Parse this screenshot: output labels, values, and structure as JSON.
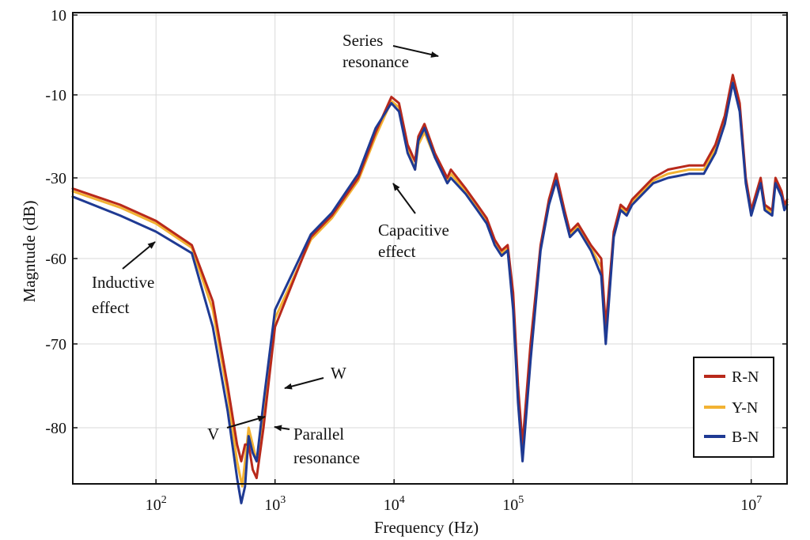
{
  "chart_data": {
    "type": "line",
    "title": "",
    "xlabel": "Frequency (Hz)",
    "ylabel": "Magntude (dB)",
    "xscale": "log",
    "xlim": [
      20,
      20000000
    ],
    "x_ticks": [
      {
        "value": 100,
        "base": "10",
        "exp": "2"
      },
      {
        "value": 1000,
        "base": "10",
        "exp": "3"
      },
      {
        "value": 10000,
        "base": "10",
        "exp": "4"
      },
      {
        "value": 100000,
        "base": "10",
        "exp": "5"
      },
      {
        "value": 10000000,
        "base": "10",
        "exp": "7"
      }
    ],
    "y_ticks": [
      "10",
      "-10",
      "-30",
      "-60",
      "-70",
      "-80"
    ],
    "grid": true,
    "legend": {
      "placement": "bottom-right",
      "entries": [
        "R-N",
        "Y-N",
        "B-N"
      ]
    },
    "series": [
      {
        "name": "R-N",
        "color": "#b8291b",
        "points": [
          [
            20,
            -34
          ],
          [
            50,
            -40
          ],
          [
            100,
            -46
          ],
          [
            200,
            -55
          ],
          [
            300,
            -65
          ],
          [
            400,
            -75
          ],
          [
            480,
            -82
          ],
          [
            520,
            -84
          ],
          [
            560,
            -82
          ],
          [
            600,
            -82
          ],
          [
            650,
            -85
          ],
          [
            700,
            -86
          ],
          [
            800,
            -80
          ],
          [
            1000,
            -68
          ],
          [
            2000,
            -52
          ],
          [
            3000,
            -44
          ],
          [
            5000,
            -30
          ],
          [
            7000,
            -19
          ],
          [
            9500,
            -10.5
          ],
          [
            11000,
            -12
          ],
          [
            13000,
            -22
          ],
          [
            15000,
            -26
          ],
          [
            16000,
            -20
          ],
          [
            18000,
            -17
          ],
          [
            22000,
            -24
          ],
          [
            28000,
            -30
          ],
          [
            30000,
            -28
          ],
          [
            40000,
            -34
          ],
          [
            50000,
            -40
          ],
          [
            60000,
            -45
          ],
          [
            70000,
            -53
          ],
          [
            80000,
            -57
          ],
          [
            90000,
            -55
          ],
          [
            100000,
            -64
          ],
          [
            110000,
            -75
          ],
          [
            120000,
            -82
          ],
          [
            140000,
            -70
          ],
          [
            170000,
            -55
          ],
          [
            200000,
            -38
          ],
          [
            230000,
            -29
          ],
          [
            270000,
            -42
          ],
          [
            300000,
            -50
          ],
          [
            350000,
            -47
          ],
          [
            450000,
            -55
          ],
          [
            550000,
            -60
          ],
          [
            600000,
            -68
          ],
          [
            700000,
            -50
          ],
          [
            800000,
            -40
          ],
          [
            900000,
            -42
          ],
          [
            1000000,
            -38
          ],
          [
            1500000,
            -30
          ],
          [
            2000000,
            -28
          ],
          [
            3000000,
            -27
          ],
          [
            4000000,
            -27
          ],
          [
            5000000,
            -22
          ],
          [
            6000000,
            -15
          ],
          [
            7000000,
            -5
          ],
          [
            8000000,
            -12
          ],
          [
            9000000,
            -30
          ],
          [
            10000000,
            -42
          ],
          [
            12000000,
            -30
          ],
          [
            13000000,
            -40
          ],
          [
            15000000,
            -42
          ],
          [
            16000000,
            -30
          ],
          [
            18000000,
            -35
          ],
          [
            19000000,
            -40
          ],
          [
            20000000,
            -38
          ]
        ]
      },
      {
        "name": "Y-N",
        "color": "#f2b233",
        "points": [
          [
            20,
            -35
          ],
          [
            50,
            -41
          ],
          [
            100,
            -47
          ],
          [
            200,
            -56
          ],
          [
            300,
            -66
          ],
          [
            400,
            -76
          ],
          [
            480,
            -84
          ],
          [
            530,
            -87
          ],
          [
            560,
            -84
          ],
          [
            600,
            -80
          ],
          [
            650,
            -82
          ],
          [
            700,
            -84
          ],
          [
            800,
            -78
          ],
          [
            1000,
            -67
          ],
          [
            2000,
            -53
          ],
          [
            3000,
            -45
          ],
          [
            5000,
            -31
          ],
          [
            7000,
            -20
          ],
          [
            9500,
            -11.5
          ],
          [
            11000,
            -13
          ],
          [
            13000,
            -23
          ],
          [
            15000,
            -28
          ],
          [
            16000,
            -22
          ],
          [
            18000,
            -19
          ],
          [
            22000,
            -25
          ],
          [
            28000,
            -31
          ],
          [
            30000,
            -29
          ],
          [
            40000,
            -35
          ],
          [
            50000,
            -41
          ],
          [
            60000,
            -46
          ],
          [
            70000,
            -54
          ],
          [
            80000,
            -58
          ],
          [
            90000,
            -56
          ],
          [
            100000,
            -65
          ],
          [
            110000,
            -76
          ],
          [
            120000,
            -83
          ],
          [
            140000,
            -71
          ],
          [
            170000,
            -56
          ],
          [
            200000,
            -39
          ],
          [
            230000,
            -30
          ],
          [
            270000,
            -43
          ],
          [
            300000,
            -51
          ],
          [
            350000,
            -48
          ],
          [
            450000,
            -56
          ],
          [
            550000,
            -61
          ],
          [
            600000,
            -69
          ],
          [
            700000,
            -51
          ],
          [
            800000,
            -41
          ],
          [
            900000,
            -43
          ],
          [
            1000000,
            -39
          ],
          [
            1500000,
            -31
          ],
          [
            2000000,
            -29
          ],
          [
            3000000,
            -28
          ],
          [
            4000000,
            -28
          ],
          [
            5000000,
            -23
          ],
          [
            6000000,
            -16
          ],
          [
            7000000,
            -6
          ],
          [
            8000000,
            -13
          ],
          [
            9000000,
            -31
          ],
          [
            10000000,
            -43
          ],
          [
            12000000,
            -31
          ],
          [
            13000000,
            -41
          ],
          [
            15000000,
            -43
          ],
          [
            16000000,
            -31
          ],
          [
            18000000,
            -36
          ],
          [
            19000000,
            -41
          ],
          [
            20000000,
            -39
          ]
        ]
      },
      {
        "name": "B-N",
        "color": "#1f3a93",
        "points": [
          [
            20,
            -37
          ],
          [
            50,
            -44
          ],
          [
            100,
            -50
          ],
          [
            200,
            -58
          ],
          [
            300,
            -68
          ],
          [
            400,
            -78
          ],
          [
            480,
            -86
          ],
          [
            520,
            -89
          ],
          [
            560,
            -87
          ],
          [
            600,
            -81
          ],
          [
            650,
            -83
          ],
          [
            700,
            -84
          ],
          [
            800,
            -77
          ],
          [
            1000,
            -66
          ],
          [
            2000,
            -51
          ],
          [
            3000,
            -43
          ],
          [
            5000,
            -29
          ],
          [
            7000,
            -18
          ],
          [
            9500,
            -12
          ],
          [
            11000,
            -14
          ],
          [
            13000,
            -24
          ],
          [
            15000,
            -28
          ],
          [
            16000,
            -21
          ],
          [
            18000,
            -18
          ],
          [
            22000,
            -25
          ],
          [
            28000,
            -32
          ],
          [
            30000,
            -30
          ],
          [
            40000,
            -36
          ],
          [
            50000,
            -42
          ],
          [
            60000,
            -47
          ],
          [
            70000,
            -55
          ],
          [
            80000,
            -59
          ],
          [
            90000,
            -57
          ],
          [
            100000,
            -66
          ],
          [
            110000,
            -77
          ],
          [
            120000,
            -84
          ],
          [
            140000,
            -72
          ],
          [
            170000,
            -57
          ],
          [
            200000,
            -40
          ],
          [
            230000,
            -31
          ],
          [
            270000,
            -44
          ],
          [
            300000,
            -52
          ],
          [
            350000,
            -49
          ],
          [
            450000,
            -57
          ],
          [
            550000,
            -62
          ],
          [
            600000,
            -70
          ],
          [
            700000,
            -52
          ],
          [
            800000,
            -42
          ],
          [
            900000,
            -44
          ],
          [
            1000000,
            -40
          ],
          [
            1500000,
            -32
          ],
          [
            2000000,
            -30
          ],
          [
            3000000,
            -29
          ],
          [
            4000000,
            -29
          ],
          [
            5000000,
            -24
          ],
          [
            6000000,
            -17
          ],
          [
            7000000,
            -7
          ],
          [
            8000000,
            -14
          ],
          [
            9000000,
            -32
          ],
          [
            10000000,
            -44
          ],
          [
            12000000,
            -32
          ],
          [
            13000000,
            -42
          ],
          [
            15000000,
            -44
          ],
          [
            16000000,
            -32
          ],
          [
            18000000,
            -37
          ],
          [
            19000000,
            -42
          ],
          [
            20000000,
            -40
          ]
        ]
      }
    ],
    "annotations": [
      {
        "id": "series",
        "lines": [
          "Series",
          "resonance"
        ]
      },
      {
        "id": "capacitive",
        "lines": [
          "Capacitive",
          "effect"
        ]
      },
      {
        "id": "inductive",
        "lines": [
          "Inductive",
          "effect"
        ]
      },
      {
        "id": "w",
        "lines": [
          "W"
        ]
      },
      {
        "id": "v",
        "lines": [
          "V"
        ]
      },
      {
        "id": "parallel",
        "lines": [
          "Parallel",
          "resonance"
        ]
      }
    ]
  }
}
